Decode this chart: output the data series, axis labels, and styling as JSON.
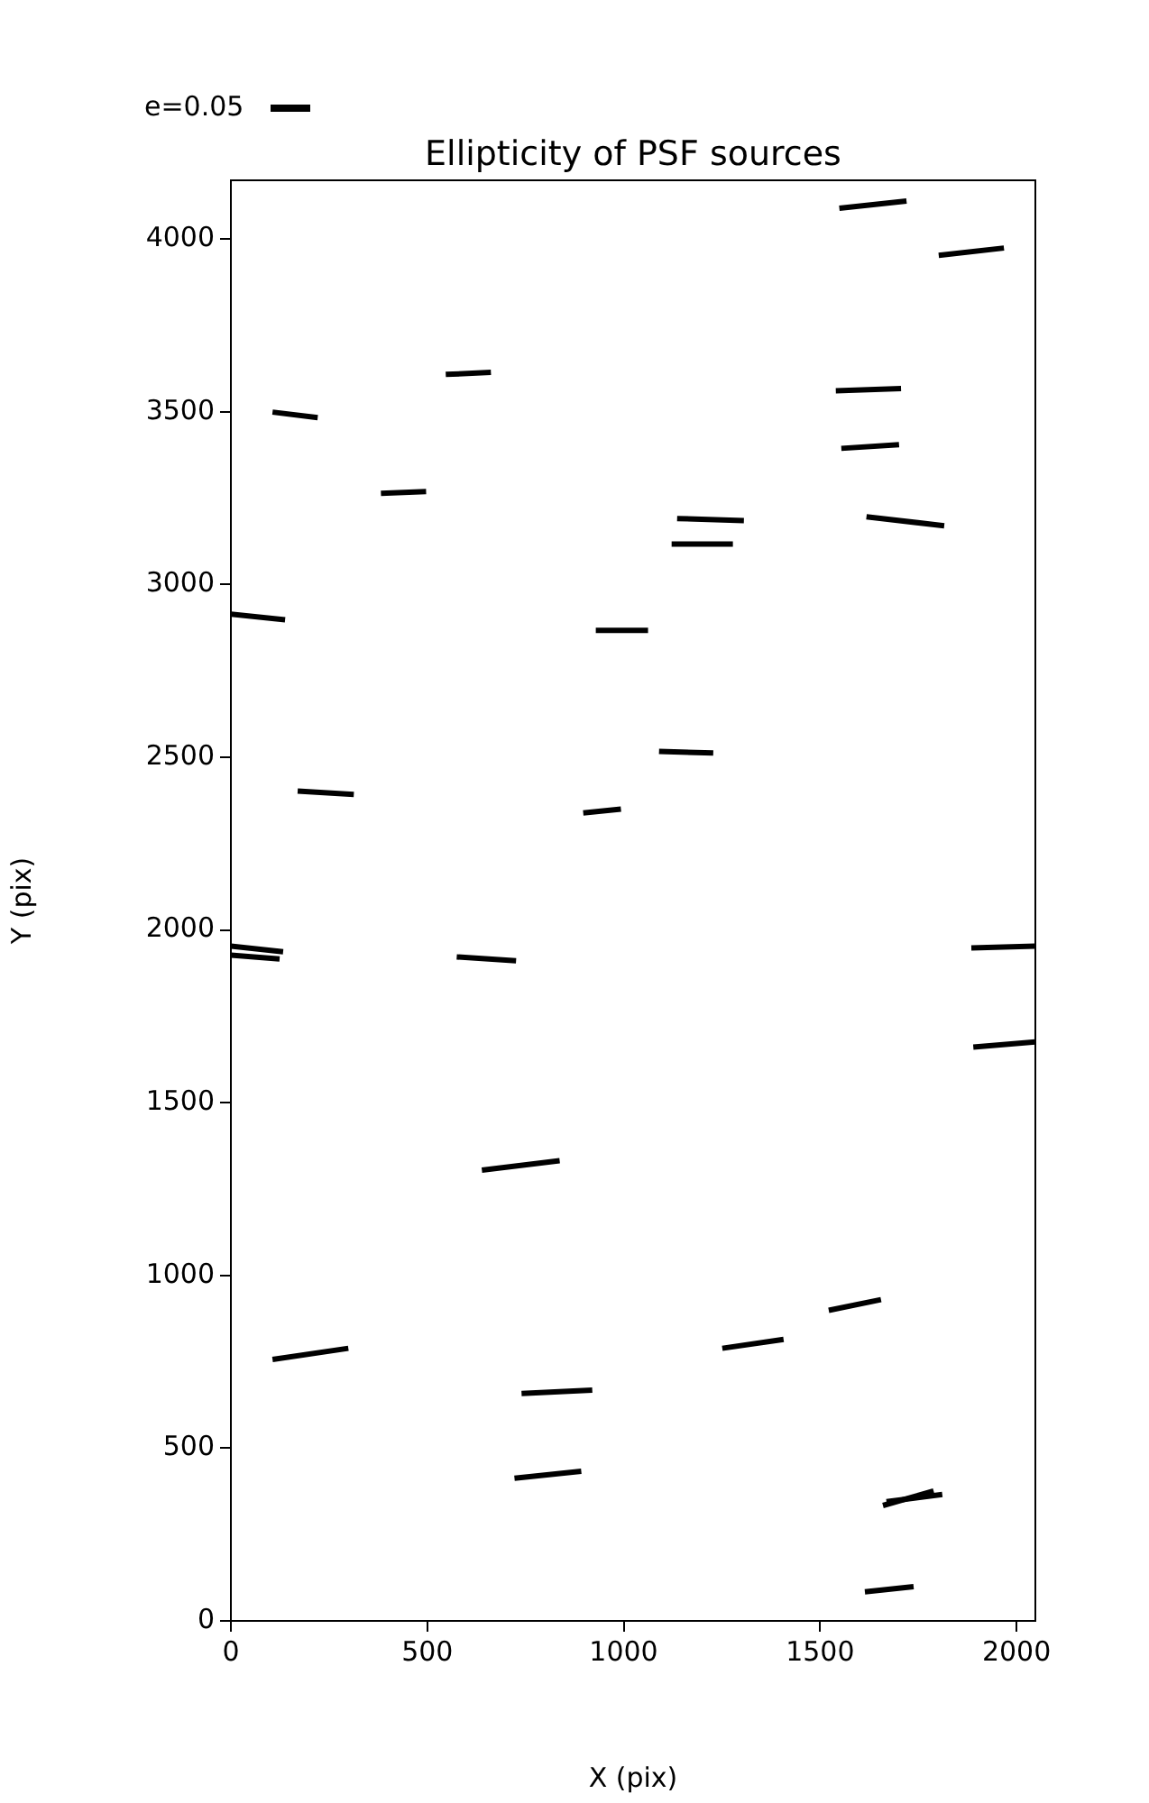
{
  "chart_data": {
    "type": "line",
    "title": "Ellipticity of PSF sources",
    "xlabel": "X (pix)",
    "ylabel": "Y (pix)",
    "xlim": [
      0,
      2048
    ],
    "ylim": [
      0,
      4170
    ],
    "xticks": [
      0,
      500,
      1000,
      1500,
      2000
    ],
    "yticks": [
      0,
      500,
      1000,
      1500,
      2000,
      2500,
      3000,
      3500,
      4000
    ],
    "annotations": [
      "e=0.05"
    ],
    "series": [
      {
        "color": "#000000",
        "x": [
          1549,
          1720
        ],
        "values": [
          4089,
          4110
        ]
      },
      {
        "color": "#000000",
        "x": [
          1802,
          1968
        ],
        "values": [
          3953,
          3974
        ]
      },
      {
        "color": "#000000",
        "x": [
          547,
          662
        ],
        "values": [
          3608,
          3614
        ]
      },
      {
        "color": "#000000",
        "x": [
          106,
          221
        ],
        "values": [
          3499,
          3483
        ]
      },
      {
        "color": "#000000",
        "x": [
          1540,
          1706
        ],
        "values": [
          3561,
          3567
        ]
      },
      {
        "color": "#000000",
        "x": [
          1554,
          1701
        ],
        "values": [
          3394,
          3405
        ]
      },
      {
        "color": "#000000",
        "x": [
          382,
          497
        ],
        "values": [
          3264,
          3269
        ]
      },
      {
        "color": "#000000",
        "x": [
          1136,
          1306
        ],
        "values": [
          3191,
          3185
        ]
      },
      {
        "color": "#000000",
        "x": [
          1122,
          1278
        ],
        "values": [
          3117,
          3117
        ]
      },
      {
        "color": "#000000",
        "x": [
          1618,
          1816
        ],
        "values": [
          3196,
          3170
        ]
      },
      {
        "color": "#000000",
        "x": [
          0,
          138
        ],
        "values": [
          2914,
          2898
        ]
      },
      {
        "color": "#000000",
        "x": [
          929,
          1062
        ],
        "values": [
          2867,
          2867
        ]
      },
      {
        "color": "#000000",
        "x": [
          1090,
          1228
        ],
        "values": [
          2517,
          2512
        ]
      },
      {
        "color": "#000000",
        "x": [
          170,
          313
        ],
        "values": [
          2402,
          2392
        ]
      },
      {
        "color": "#000000",
        "x": [
          897,
          993
        ],
        "values": [
          2339,
          2350
        ]
      },
      {
        "color": "#000000",
        "x": [
          0,
          133
        ],
        "values": [
          1953,
          1937
        ]
      },
      {
        "color": "#000000",
        "x": [
          0,
          124
        ],
        "values": [
          1927,
          1916
        ]
      },
      {
        "color": "#000000",
        "x": [
          575,
          726
        ],
        "values": [
          1922,
          1911
        ]
      },
      {
        "color": "#000000",
        "x": [
          1885,
          2048
        ],
        "values": [
          1948,
          1953
        ]
      },
      {
        "color": "#000000",
        "x": [
          1890,
          2048
        ],
        "values": [
          1661,
          1676
        ]
      },
      {
        "color": "#000000",
        "x": [
          639,
          837
        ],
        "values": [
          1305,
          1332
        ]
      },
      {
        "color": "#000000",
        "x": [
          1251,
          1407
        ],
        "values": [
          789,
          815
        ]
      },
      {
        "color": "#000000",
        "x": [
          1522,
          1655
        ],
        "values": [
          899,
          930
        ]
      },
      {
        "color": "#000000",
        "x": [
          106,
          299
        ],
        "values": [
          757,
          789
        ]
      },
      {
        "color": "#000000",
        "x": [
          740,
          920
        ],
        "values": [
          658,
          668
        ]
      },
      {
        "color": "#000000",
        "x": [
          722,
          892
        ],
        "values": [
          413,
          433
        ]
      },
      {
        "color": "#000000",
        "x": [
          1660,
          1789
        ],
        "values": [
          334,
          376
        ]
      },
      {
        "color": "#000000",
        "x": [
          1669,
          1811
        ],
        "values": [
          345,
          366
        ]
      },
      {
        "color": "#000000",
        "x": [
          1614,
          1738
        ],
        "values": [
          84,
          99
        ]
      }
    ]
  }
}
